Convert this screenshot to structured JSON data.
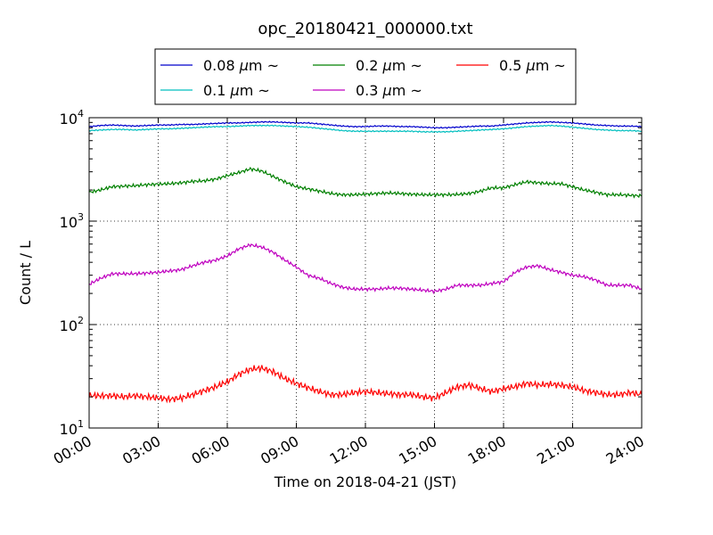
{
  "chart_data": {
    "type": "line",
    "title": "opc_20180421_000000.txt",
    "xlabel": "Time on 2018-04-21 (JST)",
    "ylabel": "Count / L",
    "x_unit": "hours",
    "xlim": [
      0,
      24
    ],
    "ylim": [
      10,
      10000
    ],
    "y_scale": "log",
    "grid": true,
    "legend_position": "top-center, outside plot",
    "x_ticks": [
      0,
      3,
      6,
      9,
      12,
      15,
      18,
      21,
      24
    ],
    "x_tick_labels": [
      "00:00",
      "03:00",
      "06:00",
      "09:00",
      "12:00",
      "15:00",
      "18:00",
      "21:00",
      "24:00"
    ],
    "y_ticks": [
      10,
      100,
      1000,
      10000
    ],
    "y_tick_labels": [
      {
        "base": "10",
        "exp": "1"
      },
      {
        "base": "10",
        "exp": "2"
      },
      {
        "base": "10",
        "exp": "3"
      },
      {
        "base": "10",
        "exp": "4"
      }
    ],
    "x": [
      0,
      0.5,
      1,
      1.5,
      2,
      2.5,
      3,
      3.5,
      4,
      4.5,
      5,
      5.5,
      6,
      6.5,
      7,
      7.5,
      8,
      8.5,
      9,
      9.5,
      10,
      10.5,
      11,
      11.5,
      12,
      12.5,
      13,
      13.5,
      14,
      14.5,
      15,
      15.5,
      16,
      16.5,
      17,
      17.5,
      18,
      18.5,
      19,
      19.5,
      20,
      20.5,
      21,
      21.5,
      22,
      22.5,
      23,
      23.5,
      24
    ],
    "series": [
      {
        "name": "0.08 μm ~",
        "label_parts": [
          "0.08 ",
          "μ",
          "m  ~"
        ],
        "color": "#0000cc",
        "values": [
          8200,
          8400,
          8500,
          8400,
          8300,
          8400,
          8500,
          8500,
          8600,
          8600,
          8700,
          8800,
          8900,
          8900,
          9000,
          9100,
          9100,
          9000,
          8900,
          8900,
          8700,
          8500,
          8300,
          8200,
          8200,
          8300,
          8300,
          8200,
          8200,
          8100,
          8000,
          8000,
          8100,
          8200,
          8300,
          8300,
          8500,
          8700,
          8900,
          9000,
          9100,
          9000,
          8900,
          8700,
          8500,
          8400,
          8300,
          8300,
          8200
        ]
      },
      {
        "name": "0.1 μm ~",
        "label_parts": [
          "0.1 ",
          "μ",
          "m  ~"
        ],
        "color": "#00bfbf",
        "values": [
          7500,
          7600,
          7700,
          7700,
          7600,
          7700,
          7800,
          7800,
          7900,
          8000,
          8100,
          8200,
          8200,
          8300,
          8400,
          8400,
          8400,
          8300,
          8200,
          8100,
          7900,
          7700,
          7500,
          7400,
          7400,
          7400,
          7400,
          7400,
          7400,
          7300,
          7300,
          7300,
          7400,
          7500,
          7600,
          7700,
          7800,
          8000,
          8200,
          8300,
          8400,
          8300,
          8100,
          7900,
          7700,
          7600,
          7500,
          7500,
          7400
        ]
      },
      {
        "name": "0.2 μm ~",
        "label_parts": [
          "0.2 ",
          "μ",
          "m  ~"
        ],
        "color": "#008000",
        "values": [
          1900,
          2000,
          2150,
          2180,
          2200,
          2250,
          2280,
          2300,
          2350,
          2420,
          2450,
          2550,
          2750,
          2950,
          3200,
          3050,
          2700,
          2400,
          2150,
          2050,
          1950,
          1850,
          1800,
          1800,
          1820,
          1850,
          1870,
          1850,
          1820,
          1800,
          1800,
          1800,
          1810,
          1850,
          1950,
          2100,
          2100,
          2250,
          2400,
          2350,
          2300,
          2300,
          2150,
          2000,
          1900,
          1800,
          1800,
          1780,
          1750
        ]
      },
      {
        "name": "0.3 μm ~",
        "label_parts": [
          "0.3 ",
          "μ",
          "m  ~"
        ],
        "color": "#bf00bf",
        "values": [
          245,
          280,
          310,
          310,
          310,
          315,
          320,
          330,
          340,
          370,
          400,
          420,
          460,
          540,
          590,
          560,
          500,
          420,
          360,
          300,
          280,
          250,
          230,
          220,
          220,
          220,
          225,
          225,
          220,
          215,
          210,
          220,
          240,
          240,
          240,
          250,
          260,
          320,
          360,
          370,
          340,
          320,
          300,
          290,
          270,
          240,
          240,
          240,
          220
        ]
      },
      {
        "name": "0.5 μm ~",
        "label_parts": [
          "0.5 ",
          "μ",
          "m  ~"
        ],
        "color": "#ff0000",
        "values": [
          20.5,
          20.5,
          20.5,
          20,
          20.5,
          20,
          19.5,
          19,
          19.5,
          21,
          23,
          25,
          28,
          33,
          37,
          38,
          35,
          30,
          27,
          24.5,
          22.5,
          21,
          21,
          22,
          22.5,
          22,
          21.5,
          21,
          21,
          20,
          19.5,
          22,
          25,
          26,
          24,
          22.5,
          24,
          25,
          27,
          26,
          26.5,
          26,
          25,
          23,
          22,
          21,
          21,
          22,
          21
        ]
      }
    ]
  }
}
